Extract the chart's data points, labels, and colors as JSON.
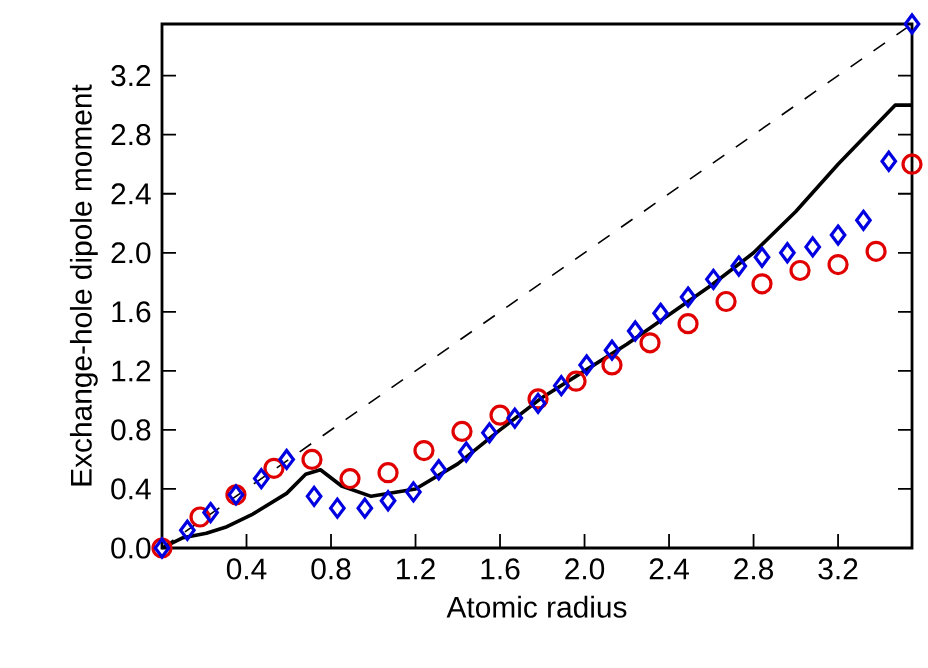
{
  "chart_data": {
    "type": "scatter",
    "xlabel": "Atomic radius",
    "ylabel": "Exchange-hole dipole moment",
    "xlim": [
      0,
      3.55
    ],
    "ylim": [
      0,
      3.55
    ],
    "xticks": [
      0.4,
      0.8,
      1.2,
      1.6,
      {
        "value": 2.0,
        "label": "2.0"
      },
      2.4,
      2.8,
      3.2
    ],
    "yticks": [
      {
        "value": 0,
        "label": "0.0"
      },
      0.4,
      0.8,
      1.2,
      1.6,
      {
        "value": 2.0,
        "label": "2.0"
      },
      2.4,
      2.8,
      3.2
    ],
    "grid": false,
    "series": [
      {
        "marker": "circle",
        "color": "#e00000",
        "x": [
          0,
          0.18,
          0.35,
          0.53,
          0.71,
          0.89,
          1.07,
          1.24,
          1.42,
          1.6,
          1.78,
          1.96,
          2.13,
          2.31,
          2.49,
          2.67,
          2.84,
          3.02,
          3.2,
          3.38,
          3.55
        ],
        "values": [
          0,
          0.21,
          0.36,
          0.54,
          0.6,
          0.47,
          0.51,
          0.66,
          0.79,
          0.9,
          1.01,
          1.13,
          1.24,
          1.39,
          1.52,
          1.67,
          1.79,
          1.88,
          1.92,
          2.01,
          2.6
        ]
      },
      {
        "marker": "diamond",
        "color": "#0000e0",
        "x": [
          0,
          0.12,
          0.23,
          0.35,
          0.47,
          0.59,
          0.72,
          0.83,
          0.96,
          1.07,
          1.19,
          1.31,
          1.44,
          1.55,
          1.67,
          1.78,
          1.89,
          2.01,
          2.13,
          2.24,
          2.36,
          2.49,
          2.61,
          2.73,
          2.84,
          2.96,
          3.08,
          3.2,
          3.32,
          3.44,
          3.55
        ],
        "values": [
          0,
          0.12,
          0.24,
          0.36,
          0.47,
          0.6,
          0.35,
          0.27,
          0.27,
          0.32,
          0.38,
          0.53,
          0.65,
          0.78,
          0.88,
          0.98,
          1.1,
          1.24,
          1.34,
          1.47,
          1.59,
          1.7,
          1.82,
          1.91,
          1.97,
          2.0,
          2.04,
          2.12,
          2.22,
          2.62,
          3.55
        ]
      },
      {
        "type": "line",
        "marker": "none",
        "line_style": "solid",
        "color": "#000000",
        "x": [
          0,
          0.1,
          0.21,
          0.3,
          0.43,
          0.59,
          0.68,
          0.75,
          0.85,
          0.99,
          1.2,
          1.4,
          1.6,
          1.8,
          2.0,
          2.2,
          2.4,
          2.6,
          2.8,
          3.0,
          3.2,
          3.47,
          3.55
        ],
        "values": [
          0,
          0.07,
          0.1,
          0.14,
          0.23,
          0.37,
          0.5,
          0.53,
          0.42,
          0.35,
          0.4,
          0.57,
          0.8,
          1.02,
          1.2,
          1.38,
          1.58,
          1.78,
          2.0,
          2.28,
          2.6,
          3.0,
          3.0
        ]
      },
      {
        "type": "line",
        "marker": "none",
        "line_style": "dashed",
        "color": "#000000",
        "x": [
          0,
          3.55
        ],
        "values": [
          0,
          3.55
        ]
      }
    ]
  }
}
